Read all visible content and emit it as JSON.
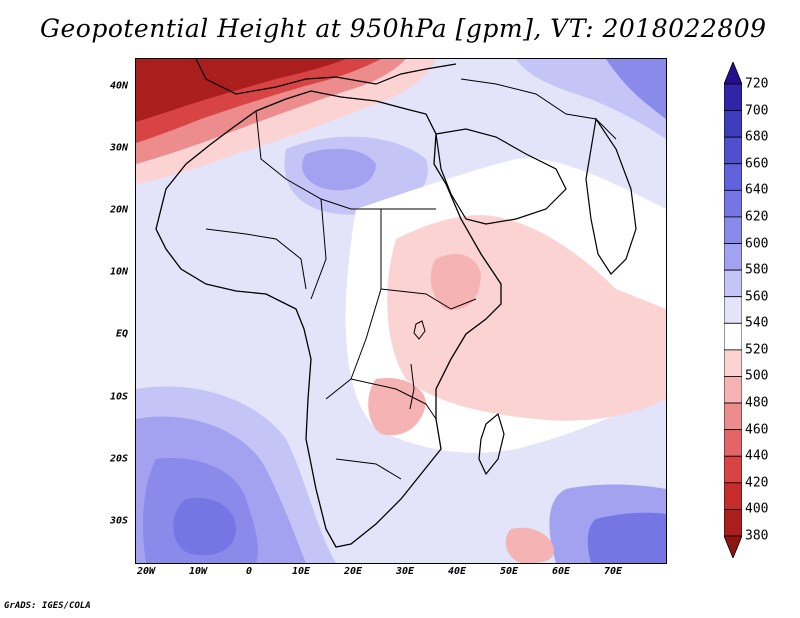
{
  "title": "Geopotential Height at 950hPa [gpm], VT: 2018022809",
  "map": {
    "lat_labels": [
      "40N",
      "30N",
      "20N",
      "10N",
      "EQ",
      "10S",
      "20S",
      "30S"
    ],
    "lon_labels": [
      "20W",
      "10W",
      "0",
      "10E",
      "20E",
      "30E",
      "40E",
      "50E",
      "60E",
      "70E"
    ]
  },
  "colorbar": {
    "levels": [
      "720",
      "700",
      "680",
      "660",
      "640",
      "620",
      "600",
      "580",
      "560",
      "540",
      "520",
      "500",
      "480",
      "460",
      "440",
      "420",
      "400",
      "380"
    ],
    "colors": [
      "#24108f",
      "#3124a6",
      "#3f3cbd",
      "#5050cf",
      "#6262dc",
      "#7575e4",
      "#8a8aeb",
      "#a2a2f0",
      "#c4c4f6",
      "#e3e3fa",
      "#ffffff",
      "#fbd3d3",
      "#f5b3b3",
      "#ec8c8c",
      "#e36565",
      "#d84444",
      "#c62c2c",
      "#aa1e1e",
      "#8f1414"
    ]
  },
  "credit": "GrADS: IGES/COLA"
}
